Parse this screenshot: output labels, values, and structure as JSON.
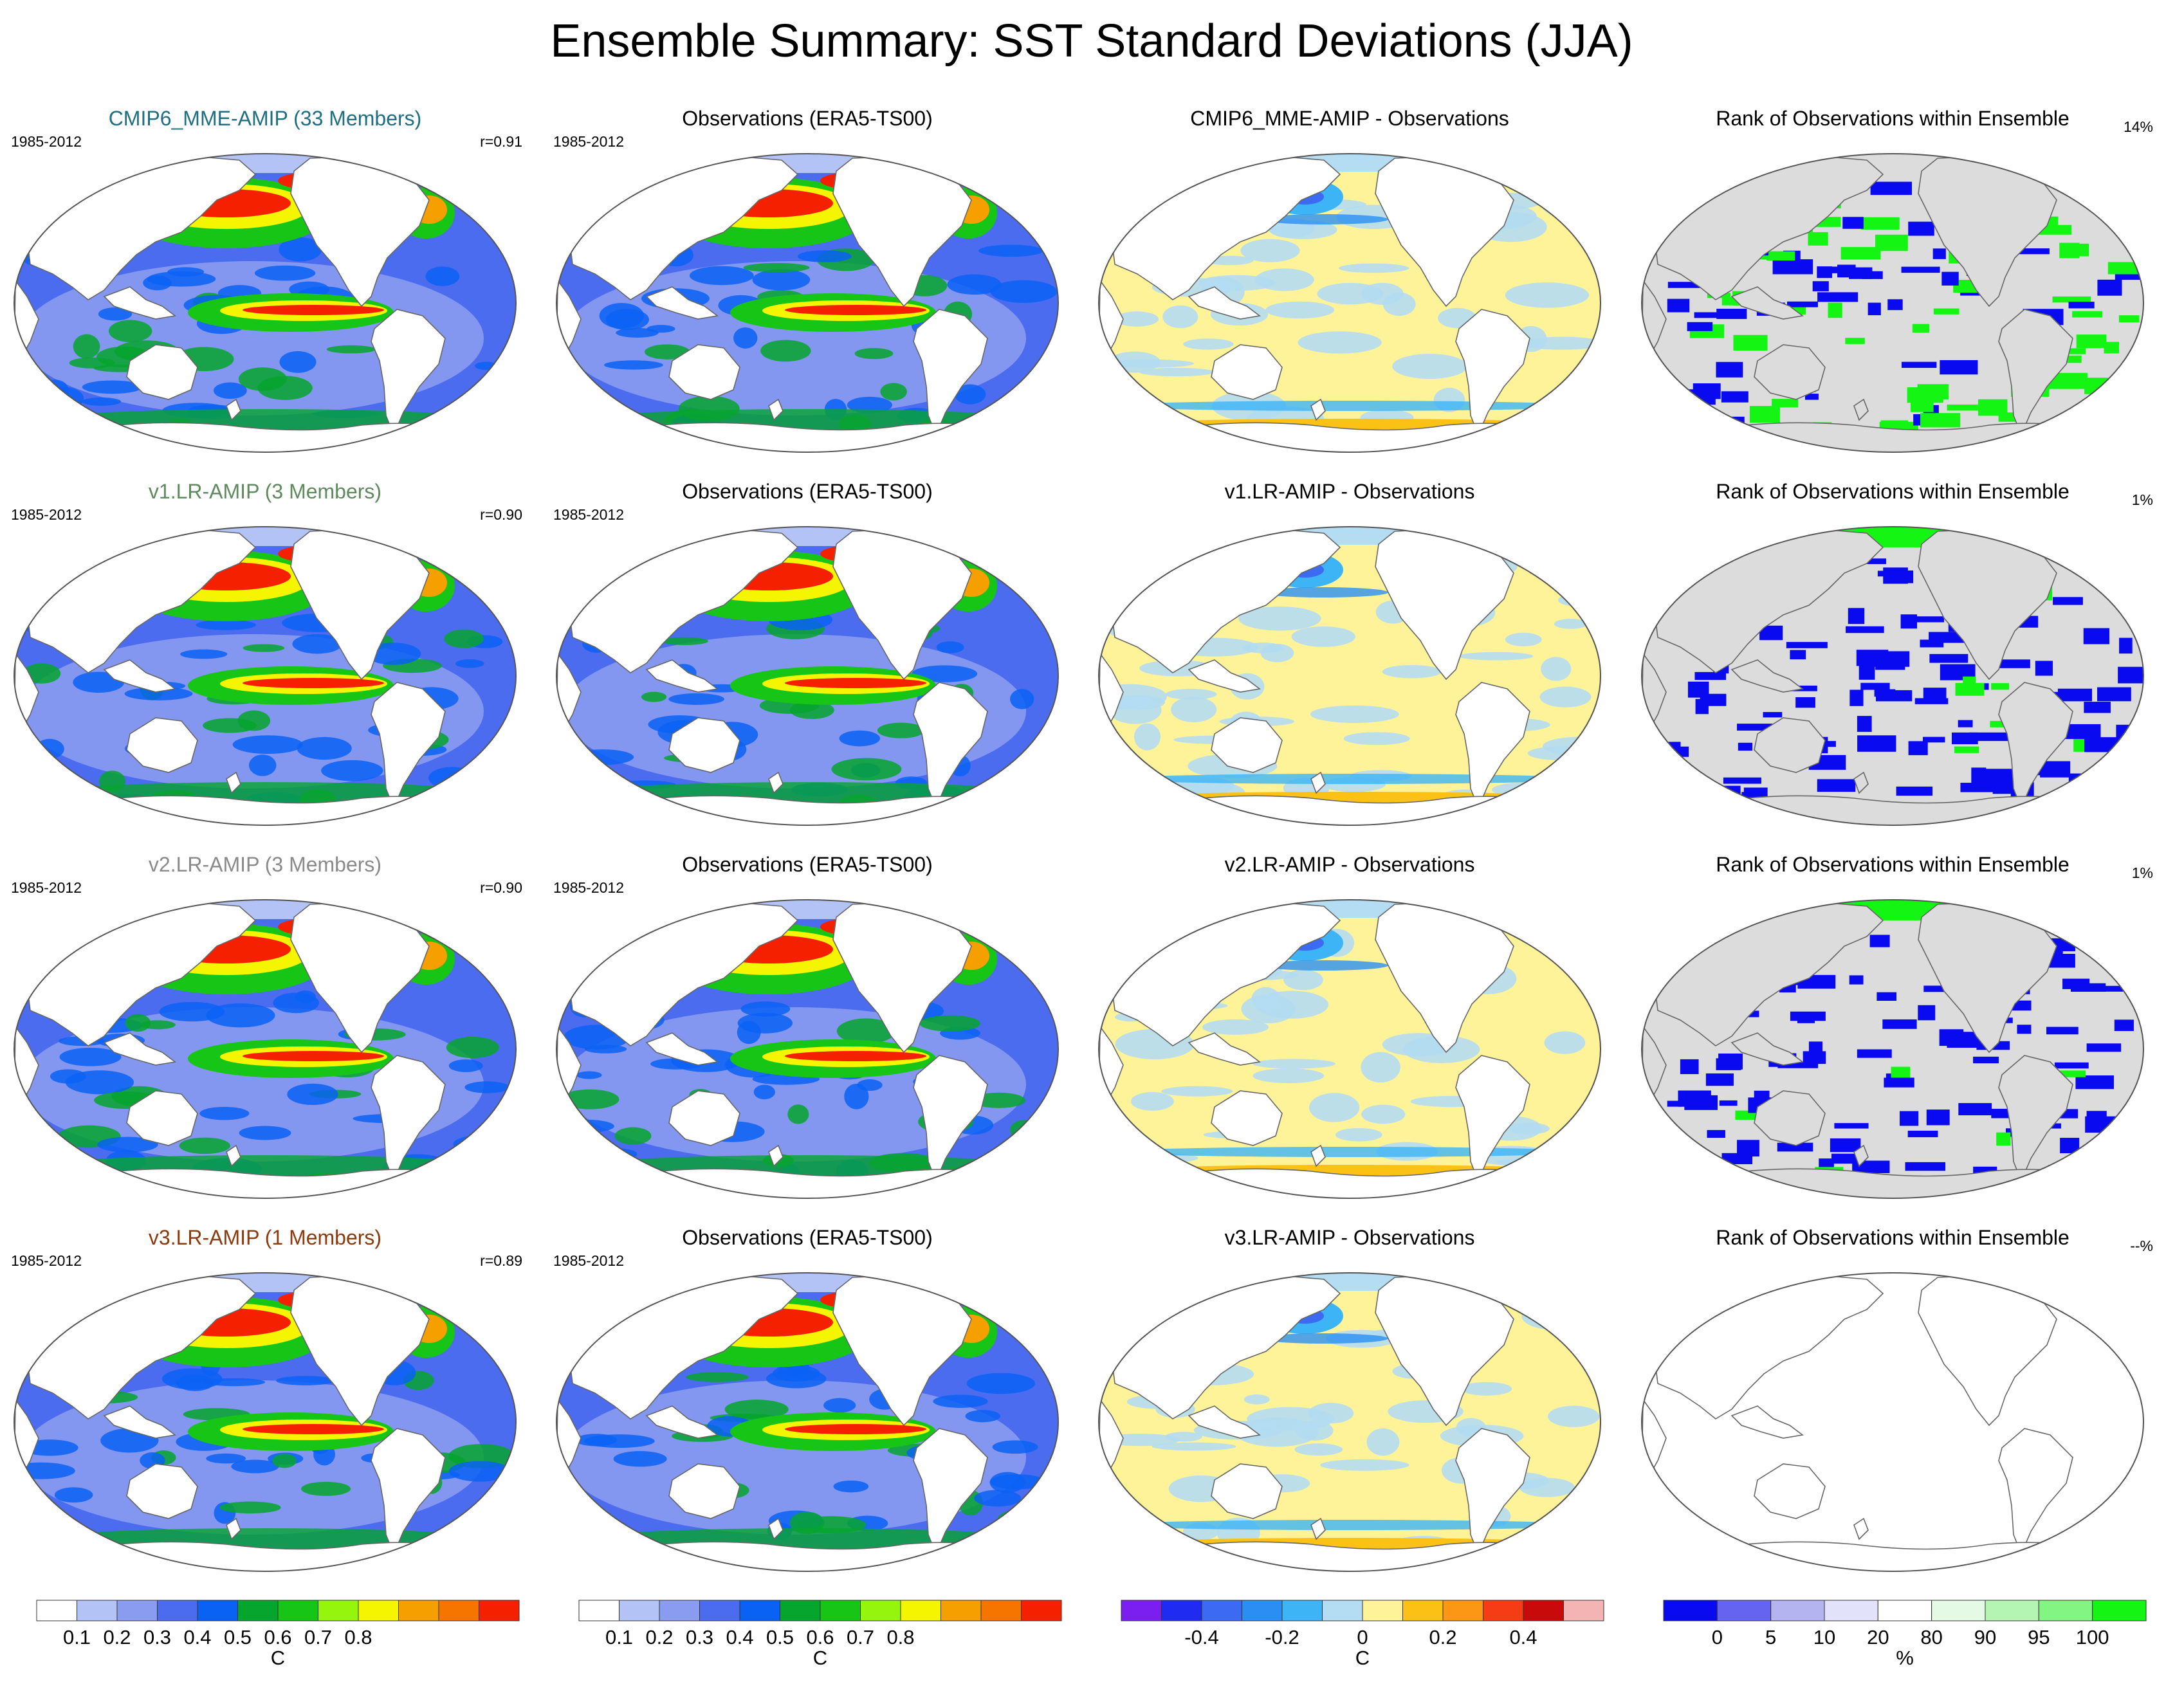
{
  "title": "Ensemble Summary: SST Standard Deviations (JJA)",
  "rows": [
    {
      "model": {
        "title": "CMIP6_MME-AMIP (33 Members)",
        "title_color": "#1f6f80",
        "period": "1985-2012",
        "corr": "r=0.91"
      },
      "obs": {
        "title": "Observations (ERA5-TS00)",
        "period": "1985-2012"
      },
      "diff": {
        "title": "CMIP6_MME-AMIP - Observations"
      },
      "rank": {
        "title": "Rank of Observations within Ensemble",
        "pct": "14%",
        "has_data": true
      }
    },
    {
      "model": {
        "title": "v1.LR-AMIP (3 Members)",
        "title_color": "#5e8a5e",
        "period": "1985-2012",
        "corr": "r=0.90"
      },
      "obs": {
        "title": "Observations (ERA5-TS00)",
        "period": "1985-2012"
      },
      "diff": {
        "title": "v1.LR-AMIP - Observations"
      },
      "rank": {
        "title": "Rank of Observations within Ensemble",
        "pct": "1%",
        "has_data": true
      }
    },
    {
      "model": {
        "title": "v2.LR-AMIP (3 Members)",
        "title_color": "#8a8a8a",
        "period": "1985-2012",
        "corr": "r=0.90"
      },
      "obs": {
        "title": "Observations (ERA5-TS00)",
        "period": "1985-2012"
      },
      "diff": {
        "title": "v2.LR-AMIP - Observations"
      },
      "rank": {
        "title": "Rank of Observations within Ensemble",
        "pct": "1%",
        "has_data": true
      }
    },
    {
      "model": {
        "title": "v3.LR-AMIP (1 Members)",
        "title_color": "#8b3a0e",
        "period": "1985-2012",
        "corr": "r=0.89"
      },
      "obs": {
        "title": "Observations (ERA5-TS00)",
        "period": "1985-2012"
      },
      "diff": {
        "title": "v3.LR-AMIP - Observations"
      },
      "rank": {
        "title": "Rank of Observations within Ensemble",
        "pct": "--%",
        "has_data": false
      }
    }
  ],
  "colorbars": [
    {
      "name": "sd-model",
      "colors": [
        "#ffffff",
        "#b4c3f6",
        "#8a9cf0",
        "#4c6cef",
        "#0a62f5",
        "#06a52e",
        "#16c516",
        "#95f50c",
        "#f5f500",
        "#f5a000",
        "#f57500",
        "#f52000"
      ],
      "labels": [
        "0.1",
        "0.2",
        "0.3",
        "0.4",
        "0.5",
        "0.6",
        "0.7",
        "0.8"
      ],
      "unit": "C"
    },
    {
      "name": "sd-obs",
      "colors": [
        "#ffffff",
        "#b4c3f6",
        "#8a9cf0",
        "#4c6cef",
        "#0a62f5",
        "#06a52e",
        "#16c516",
        "#95f50c",
        "#f5f500",
        "#f5a000",
        "#f57500",
        "#f52000"
      ],
      "labels": [
        "0.1",
        "0.2",
        "0.3",
        "0.4",
        "0.5",
        "0.6",
        "0.7",
        "0.8"
      ],
      "unit": "C"
    },
    {
      "name": "difference",
      "colors": [
        "#7a1ff0",
        "#1f2bf0",
        "#3c6af2",
        "#2b8ef2",
        "#3cb4f5",
        "#b4dcf2",
        "#fff39a",
        "#fbc215",
        "#fb9714",
        "#f53c14",
        "#c80a0a",
        "#f5b4b4"
      ],
      "labels": [
        "-0.4",
        "-0.2",
        "0",
        "0.2",
        "0.4"
      ],
      "unit": "C"
    },
    {
      "name": "rank",
      "colors": [
        "#0a0af0",
        "#6464f0",
        "#b4b4f0",
        "#e2e2fa",
        "#ffffff",
        "#e4fae4",
        "#b4f5b4",
        "#82f582",
        "#14f514"
      ],
      "labels": [
        "0",
        "5",
        "10",
        "20",
        "80",
        "90",
        "95",
        "100"
      ],
      "unit": "%"
    }
  ],
  "icons": {
    "land": "continent-outline",
    "ocean": "sst-field"
  }
}
